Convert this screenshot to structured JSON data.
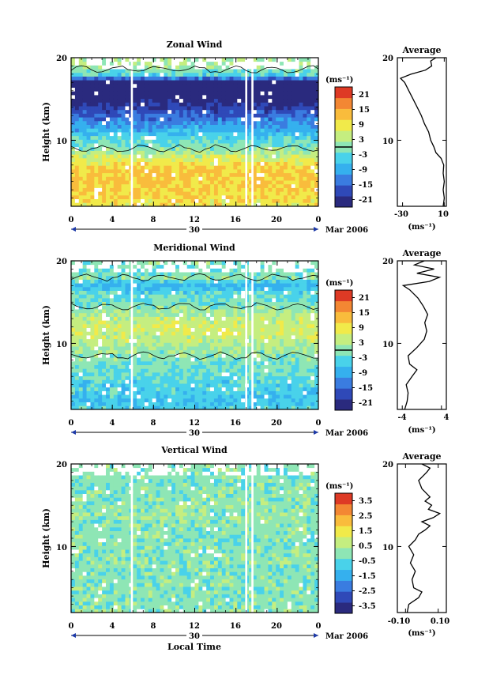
{
  "figure": {
    "common": {
      "ylabel": "Height (km)",
      "cbar_unit": "(ms⁻¹)",
      "avg_title": "Average",
      "avg_xlabel": "(ms⁻¹)",
      "date_label": "30",
      "month_label": "Mar 2006",
      "xlabel_bottom": "Local Time"
    },
    "colors": {
      "scale": [
        "#2a2a7e",
        "#2f49b8",
        "#3a7ce0",
        "#35b0ee",
        "#49d2ea",
        "#8ee6b5",
        "#c5ee80",
        "#f1ea4a",
        "#f9bc3c",
        "#f38733",
        "#de3a25"
      ],
      "gap": "#ffffff",
      "contour": "#000000"
    }
  },
  "chart_data": [
    {
      "type": "heatmap",
      "title": "Zonal Wind",
      "ylabel": "Height (km)",
      "x_ticks": [
        "0",
        "4",
        "8",
        "12",
        "16",
        "20",
        "0"
      ],
      "y_ticks": [
        "20",
        "10"
      ],
      "xlim": [
        0,
        24
      ],
      "ylim": [
        2,
        20
      ],
      "colorbar": {
        "unit": "(ms⁻¹)",
        "ticks": [
          "21",
          "15",
          "9",
          "3",
          "-3",
          "-9",
          "-15",
          "-21"
        ],
        "range": [
          -24,
          24
        ],
        "contour_level": 0
      },
      "profile_by_height": [
        {
          "h": 2,
          "v": 8
        },
        {
          "h": 3,
          "v": 10
        },
        {
          "h": 4,
          "v": 11
        },
        {
          "h": 5,
          "v": 12
        },
        {
          "h": 6,
          "v": 12
        },
        {
          "h": 7,
          "v": 10
        },
        {
          "h": 8,
          "v": 5
        },
        {
          "h": 9,
          "v": 0
        },
        {
          "h": 10,
          "v": -3
        },
        {
          "h": 11,
          "v": -7
        },
        {
          "h": 12,
          "v": -11
        },
        {
          "h": 13,
          "v": -15
        },
        {
          "h": 14,
          "v": -19
        },
        {
          "h": 15,
          "v": -23
        },
        {
          "h": 16,
          "v": -25
        },
        {
          "h": 17,
          "v": -26
        },
        {
          "h": 18,
          "v": -3
        },
        {
          "h": 19,
          "v": 2
        },
        {
          "h": 20,
          "v": 3
        }
      ],
      "data_gaps": [
        [
          5.8,
          6.0
        ],
        [
          16.9,
          17.1
        ],
        [
          17.5,
          17.7
        ]
      ],
      "average_profile": {
        "title": "Average",
        "xlabel": "(ms⁻¹)",
        "x_ticks": [
          "-30",
          "10"
        ],
        "xlim": [
          -35,
          12
        ],
        "y_ticks": [
          "20",
          "10"
        ],
        "ylim": [
          2,
          20
        ],
        "points": [
          [
            9,
            2.0
          ],
          [
            10,
            3.0
          ],
          [
            9,
            4.0
          ],
          [
            10,
            5.0
          ],
          [
            9,
            6.0
          ],
          [
            9.5,
            7.0
          ],
          [
            7,
            7.8
          ],
          [
            2,
            8.5
          ],
          [
            0,
            9.2
          ],
          [
            -3,
            10.0
          ],
          [
            -5,
            11.0
          ],
          [
            -9,
            12.0
          ],
          [
            -12,
            13.0
          ],
          [
            -16,
            14.0
          ],
          [
            -20,
            15.0
          ],
          [
            -24,
            16.0
          ],
          [
            -28,
            17.0
          ],
          [
            -32,
            17.5
          ],
          [
            -22,
            18.0
          ],
          [
            -8,
            18.5
          ],
          [
            -2,
            19.0
          ],
          [
            -3,
            19.6
          ],
          [
            2,
            20.0
          ]
        ]
      }
    },
    {
      "type": "heatmap",
      "title": "Meridional Wind",
      "ylabel": "Height (km)",
      "x_ticks": [
        "0",
        "4",
        "8",
        "12",
        "16",
        "20",
        "0"
      ],
      "y_ticks": [
        "20",
        "10"
      ],
      "xlim": [
        0,
        24
      ],
      "ylim": [
        2,
        20
      ],
      "colorbar": {
        "unit": "(ms⁻¹)",
        "ticks": [
          "21",
          "15",
          "9",
          "3",
          "-3",
          "-9",
          "-15",
          "-21"
        ],
        "range": [
          -24,
          24
        ],
        "contour_level": 0
      },
      "profile_by_height": [
        {
          "h": 2,
          "v": -4
        },
        {
          "h": 3,
          "v": -6
        },
        {
          "h": 4,
          "v": -5
        },
        {
          "h": 5,
          "v": -4
        },
        {
          "h": 6,
          "v": -3
        },
        {
          "h": 7,
          "v": -2
        },
        {
          "h": 8,
          "v": -1
        },
        {
          "h": 9,
          "v": 1
        },
        {
          "h": 10,
          "v": 3
        },
        {
          "h": 11,
          "v": 5
        },
        {
          "h": 12,
          "v": 6
        },
        {
          "h": 13,
          "v": 4
        },
        {
          "h": 14,
          "v": 1
        },
        {
          "h": 15,
          "v": -1
        },
        {
          "h": 16,
          "v": -3
        },
        {
          "h": 17,
          "v": -8
        },
        {
          "h": 18,
          "v": 0
        },
        {
          "h": 19,
          "v": -2
        },
        {
          "h": 20,
          "v": 0
        }
      ],
      "data_gaps": [
        [
          5.8,
          6.0
        ],
        [
          16.9,
          17.1
        ],
        [
          17.5,
          17.7
        ]
      ],
      "average_profile": {
        "title": "Average",
        "xlabel": "(ms⁻¹)",
        "x_ticks": [
          "-4",
          "4"
        ],
        "xlim": [
          -5,
          5
        ],
        "y_ticks": [
          "20",
          "10"
        ],
        "ylim": [
          2,
          20
        ],
        "points": [
          [
            -3.5,
            2.0
          ],
          [
            -3.0,
            3.0
          ],
          [
            -2.8,
            4.0
          ],
          [
            -3.2,
            5.0
          ],
          [
            -2.0,
            6.0
          ],
          [
            -1.0,
            6.8
          ],
          [
            -2.5,
            7.5
          ],
          [
            -2.8,
            8.5
          ],
          [
            -1.0,
            9.5
          ],
          [
            0.5,
            10.5
          ],
          [
            1.0,
            11.5
          ],
          [
            0.6,
            12.5
          ],
          [
            1.2,
            13.5
          ],
          [
            0.3,
            14.5
          ],
          [
            -0.8,
            15.5
          ],
          [
            -2.5,
            16.5
          ],
          [
            -3.8,
            17.0
          ],
          [
            1.5,
            17.5
          ],
          [
            3.6,
            18.0
          ],
          [
            -1.0,
            18.5
          ],
          [
            2.5,
            19.0
          ],
          [
            -1.5,
            19.5
          ],
          [
            0.5,
            20.0
          ]
        ]
      }
    },
    {
      "type": "heatmap",
      "title": "Vertical Wind",
      "ylabel": "Height (km)",
      "xlabel": "Local Time",
      "x_ticks": [
        "0",
        "4",
        "8",
        "12",
        "16",
        "20",
        "0"
      ],
      "y_ticks": [
        "20",
        "10"
      ],
      "xlim": [
        0,
        24
      ],
      "ylim": [
        2,
        20
      ],
      "colorbar": {
        "unit": "(ms⁻¹)",
        "ticks": [
          "3.5",
          "2.5",
          "1.5",
          "0.5",
          "-0.5",
          "-1.5",
          "-2.5",
          "-3.5"
        ],
        "range": [
          -4,
          4
        ]
      },
      "profile_by_height": [
        {
          "h": 2,
          "v": 0.0
        },
        {
          "h": 4,
          "v": 0.0
        },
        {
          "h": 6,
          "v": -0.1
        },
        {
          "h": 8,
          "v": 0.0
        },
        {
          "h": 10,
          "v": -0.1
        },
        {
          "h": 12,
          "v": 0.0
        },
        {
          "h": 14,
          "v": 0.1
        },
        {
          "h": 16,
          "v": 0.0
        },
        {
          "h": 18,
          "v": -0.1
        },
        {
          "h": 20,
          "v": 0.0
        }
      ],
      "data_gaps": [
        [
          5.8,
          6.0
        ],
        [
          16.9,
          17.1
        ],
        [
          17.5,
          17.7
        ]
      ],
      "average_profile": {
        "title": "Average",
        "xlabel": "(ms⁻¹)",
        "x_ticks": [
          "-0.10",
          "0.10"
        ],
        "xlim": [
          -0.15,
          0.15
        ],
        "y_ticks": [
          "20",
          "10"
        ],
        "ylim": [
          2,
          20
        ],
        "points": [
          [
            -0.09,
            2.0
          ],
          [
            -0.08,
            3.0
          ],
          [
            -0.02,
            3.8
          ],
          [
            0.0,
            4.5
          ],
          [
            -0.05,
            5.0
          ],
          [
            -0.06,
            6.0
          ],
          [
            -0.04,
            7.0
          ],
          [
            -0.07,
            8.0
          ],
          [
            -0.05,
            9.0
          ],
          [
            -0.08,
            10.0
          ],
          [
            -0.04,
            10.8
          ],
          [
            -0.02,
            11.5
          ],
          [
            0.02,
            12.0
          ],
          [
            0.05,
            12.5
          ],
          [
            0.0,
            13.0
          ],
          [
            0.07,
            13.5
          ],
          [
            0.11,
            14.0
          ],
          [
            0.04,
            14.5
          ],
          [
            0.06,
            15.0
          ],
          [
            0.02,
            15.5
          ],
          [
            0.05,
            16.0
          ],
          [
            0.0,
            17.0
          ],
          [
            -0.02,
            18.0
          ],
          [
            0.03,
            19.0
          ],
          [
            0.05,
            19.5
          ],
          [
            0.0,
            20.0
          ]
        ]
      }
    }
  ]
}
